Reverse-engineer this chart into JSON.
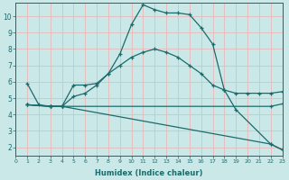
{
  "xlabel": "Humidex (Indice chaleur)",
  "bg_color": "#cbe8e8",
  "line_color": "#1a6b6b",
  "grid_color": "#e8b8b8",
  "xlim": [
    0,
    23
  ],
  "ylim": [
    1.5,
    10.8
  ],
  "yticks": [
    2,
    3,
    4,
    5,
    6,
    7,
    8,
    9,
    10
  ],
  "xticks": [
    0,
    1,
    2,
    3,
    4,
    5,
    6,
    7,
    8,
    9,
    10,
    11,
    12,
    13,
    14,
    15,
    16,
    17,
    18,
    19,
    20,
    21,
    22,
    23
  ],
  "lines": [
    {
      "x": [
        1,
        2,
        3,
        4,
        5,
        6,
        7,
        8,
        9,
        10,
        11,
        12,
        13,
        14,
        15,
        16,
        17,
        18,
        19,
        22,
        23
      ],
      "y": [
        5.9,
        4.6,
        4.5,
        4.5,
        5.8,
        5.8,
        5.9,
        6.5,
        7.7,
        9.5,
        10.7,
        10.4,
        10.2,
        10.2,
        10.1,
        9.3,
        8.3,
        5.5,
        4.3,
        2.2,
        1.85
      ]
    },
    {
      "x": [
        1,
        3,
        4,
        5,
        6,
        7,
        8,
        9,
        10,
        11,
        12,
        13,
        14,
        15,
        16,
        17,
        18,
        19,
        20,
        21,
        22,
        23
      ],
      "y": [
        4.6,
        4.5,
        4.5,
        5.1,
        5.3,
        5.8,
        6.5,
        7.0,
        7.5,
        7.8,
        8.0,
        7.8,
        7.5,
        7.0,
        6.5,
        5.8,
        5.5,
        5.3,
        5.3,
        5.3,
        5.3,
        5.4
      ]
    },
    {
      "x": [
        1,
        3,
        4,
        22,
        23
      ],
      "y": [
        4.6,
        4.5,
        4.5,
        4.5,
        4.65
      ]
    },
    {
      "x": [
        1,
        3,
        4,
        22,
        23
      ],
      "y": [
        4.6,
        4.5,
        4.5,
        2.2,
        1.85
      ]
    }
  ]
}
